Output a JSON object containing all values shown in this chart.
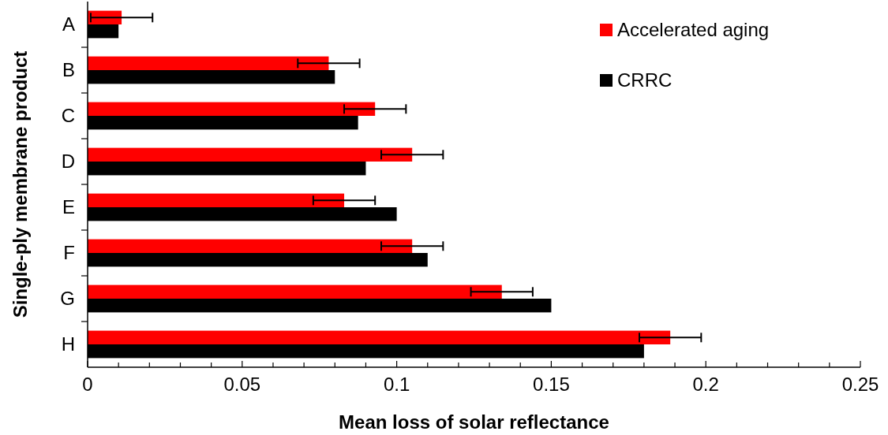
{
  "chart_data": {
    "type": "bar",
    "orientation": "horizontal",
    "xlabel": "Mean loss of solar reflectance",
    "ylabel": "Single-ply membrane product",
    "categories": [
      "A",
      "B",
      "C",
      "D",
      "E",
      "F",
      "G",
      "H"
    ],
    "series": [
      {
        "name": "Accelerated aging",
        "color": "#ff0000",
        "values": [
          0.011,
          0.078,
          0.093,
          0.105,
          0.083,
          0.105,
          0.134,
          0.1885
        ],
        "errors": [
          0.01,
          0.01,
          0.01,
          0.01,
          0.01,
          0.01,
          0.01,
          0.01
        ]
      },
      {
        "name": "CRRC",
        "color": "#000000",
        "values": [
          0.01,
          0.08,
          0.0875,
          0.09,
          0.1,
          0.11,
          0.15,
          0.18
        ]
      }
    ],
    "xlim": [
      0,
      0.25
    ],
    "xticks": [
      0,
      {
        "value": 0.01,
        "label": null
      },
      {
        "value": 0.02,
        "label": null
      },
      {
        "value": 0.03,
        "label": null
      },
      {
        "value": 0.04,
        "label": null
      },
      0.05,
      {
        "value": 0.06,
        "label": null
      },
      {
        "value": 0.07,
        "label": null
      },
      {
        "value": 0.08,
        "label": null
      },
      {
        "value": 0.09,
        "label": null
      },
      0.1,
      {
        "value": 0.11,
        "label": null
      },
      {
        "value": 0.12,
        "label": null
      },
      {
        "value": 0.13,
        "label": null
      },
      {
        "value": 0.14,
        "label": null
      },
      0.15,
      {
        "value": 0.16,
        "label": null
      },
      {
        "value": 0.17,
        "label": null
      },
      {
        "value": 0.18,
        "label": null
      },
      {
        "value": 0.19,
        "label": null
      },
      0.2,
      {
        "value": 0.21,
        "label": null
      },
      {
        "value": 0.22,
        "label": null
      },
      {
        "value": 0.23,
        "label": null
      },
      {
        "value": 0.24,
        "label": null
      },
      0.25
    ],
    "legend": "top right",
    "grid": false
  }
}
